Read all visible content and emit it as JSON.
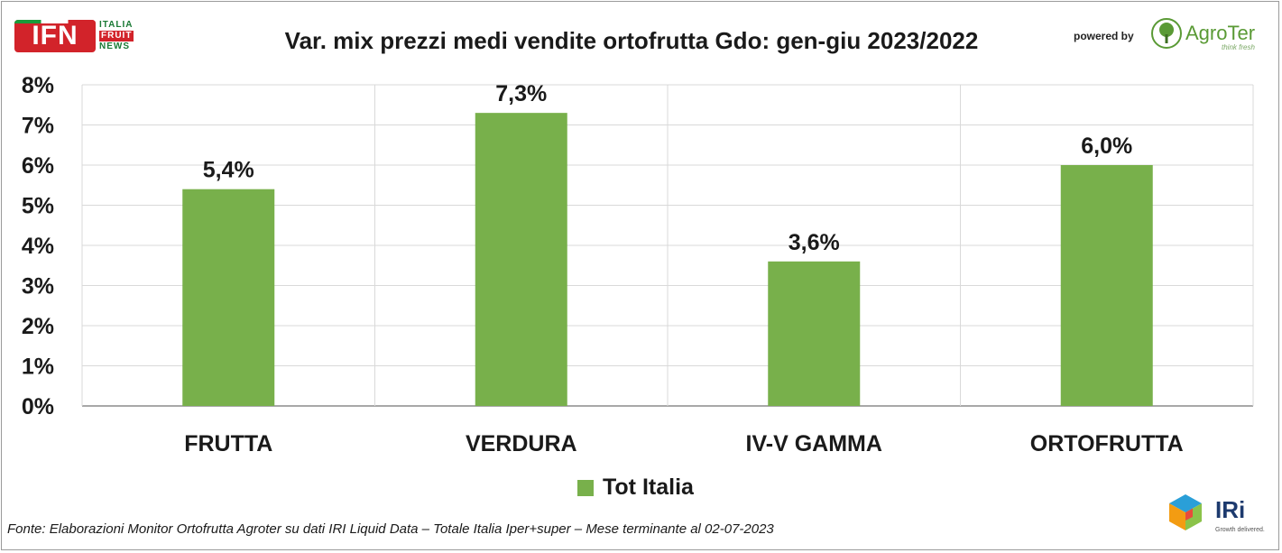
{
  "header": {
    "ifn_logo": {
      "mark": "IFN",
      "line1": "ITALIA",
      "line2": "FRUIT",
      "line3": "NEWS"
    },
    "title": "Var. mix prezzi medi vendite ortofrutta Gdo: gen-giu 2023/2022",
    "powered_by": "powered by",
    "agroter_logo": {
      "name": "AgroTer",
      "tagline": "think fresh"
    }
  },
  "chart_data": {
    "type": "bar",
    "title": "Var. mix prezzi medi vendite ortofrutta Gdo: gen-giu 2023/2022",
    "categories": [
      "FRUTTA",
      "VERDURA",
      "IV-V GAMMA",
      "ORTOFRUTTA"
    ],
    "series": [
      {
        "name": "Tot Italia",
        "values": [
          5.4,
          7.3,
          3.6,
          6.0
        ],
        "labels": [
          "5,4%",
          "7,3%",
          "3,6%",
          "6,0%"
        ],
        "color": "#78b04b"
      }
    ],
    "ylim": [
      0,
      8
    ],
    "yticks": [
      "0%",
      "1%",
      "2%",
      "3%",
      "4%",
      "5%",
      "6%",
      "7%",
      "8%"
    ],
    "grid": true,
    "legend": "bottom-center"
  },
  "footer": {
    "source": "Fonte: Elaborazioni Monitor Ortofrutta Agroter su dati IRI Liquid Data – Totale Italia Iper+super – Mese terminante al 02-07-2023",
    "iri_logo": {
      "name": "IRi",
      "tagline": "Growth delivered."
    }
  },
  "colors": {
    "bar": "#78b04b",
    "grid": "#d9d9d9",
    "axis": "#8c8c8c"
  }
}
